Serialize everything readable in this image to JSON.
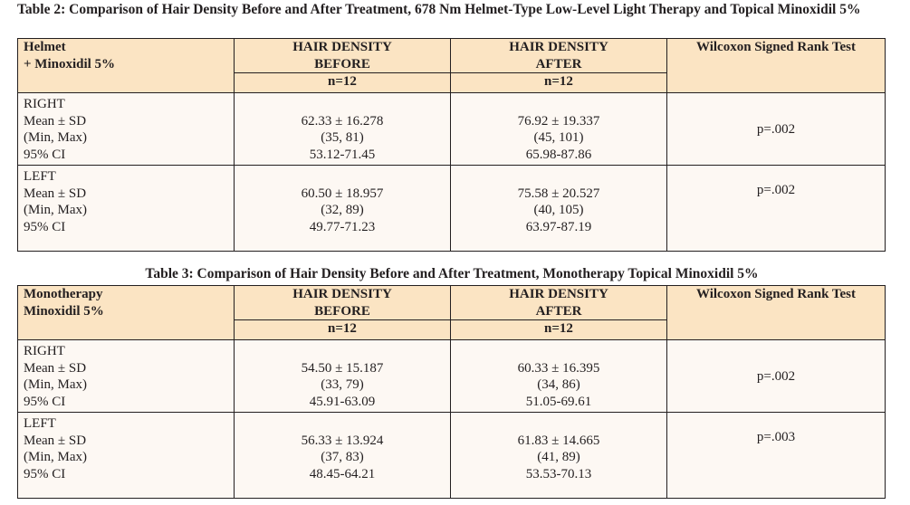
{
  "table2": {
    "caption": "Table 2: Comparison of Hair Density Before and After Treatment, 678 Nm Helmet-Type Low-Level Light Therapy and Topical Minoxidil 5%",
    "group_label_line1": "Helmet",
    "group_label_line2": "+ Minoxidil 5%",
    "before_header_line1": "HAIR DENSITY",
    "before_header_line2": "BEFORE",
    "after_header_line1": "HAIR DENSITY",
    "after_header_line2": "AFTER",
    "test_header": "Wilcoxon Signed Rank Test",
    "n_before": "n=12",
    "n_after": "n=12",
    "rows": [
      {
        "side": "RIGHT",
        "stat_label": "Mean ± SD",
        "range_label": "(Min, Max)",
        "ci_label": "95% CI",
        "before": {
          "mean_sd": "62.33 ± 16.278",
          "min_max": "(35, 81)",
          "ci": "53.12-71.45"
        },
        "after": {
          "mean_sd": "76.92 ± 19.337",
          "min_max": "(45, 101)",
          "ci": "65.98-87.86"
        },
        "p_value": "p=.002"
      },
      {
        "side": "LEFT",
        "stat_label": "Mean ± SD",
        "range_label": "(Min, Max)",
        "ci_label": "95% CI",
        "before": {
          "mean_sd": "60.50 ± 18.957",
          "min_max": "(32, 89)",
          "ci": "49.77-71.23"
        },
        "after": {
          "mean_sd": "75.58 ± 20.527",
          "min_max": "(40, 105)",
          "ci": "63.97-87.19"
        },
        "p_value": "p=.002"
      }
    ]
  },
  "table3": {
    "caption": "Table 3: Comparison of Hair Density Before and After Treatment, Monotherapy Topical Minoxidil 5%",
    "group_label_line1": "Monotherapy",
    "group_label_line2": "Minoxidil 5%",
    "before_header_line1": "HAIR DENSITY",
    "before_header_line2": "BEFORE",
    "after_header_line1": "HAIR DENSITY",
    "after_header_line2": "AFTER",
    "test_header": "Wilcoxon Signed Rank Test",
    "n_before": "n=12",
    "n_after": "n=12",
    "rows": [
      {
        "side": "RIGHT",
        "stat_label": "Mean ± SD",
        "range_label": "(Min, Max)",
        "ci_label": "95% CI",
        "before": {
          "mean_sd": "54.50 ± 15.187",
          "min_max": "(33, 79)",
          "ci": "45.91-63.09"
        },
        "after": {
          "mean_sd": "60.33 ± 16.395",
          "min_max": "(34, 86)",
          "ci": "51.05-69.61"
        },
        "p_value": "p=.002"
      },
      {
        "side": "LEFT",
        "stat_label": "Mean ± SD",
        "range_label": "(Min, Max)",
        "ci_label": "95% CI",
        "before": {
          "mean_sd": "56.33 ± 13.924",
          "min_max": "(37, 83)",
          "ci": "48.45-64.21"
        },
        "after": {
          "mean_sd": "61.83 ± 14.665",
          "min_max": "(41, 89)",
          "ci": "53.53-70.13"
        },
        "p_value": "p=.003"
      }
    ]
  },
  "colors": {
    "header_fill": "#fbe4c3",
    "body_fill": "#fdf8f3",
    "border": "#231f20",
    "text": "#231f20"
  }
}
